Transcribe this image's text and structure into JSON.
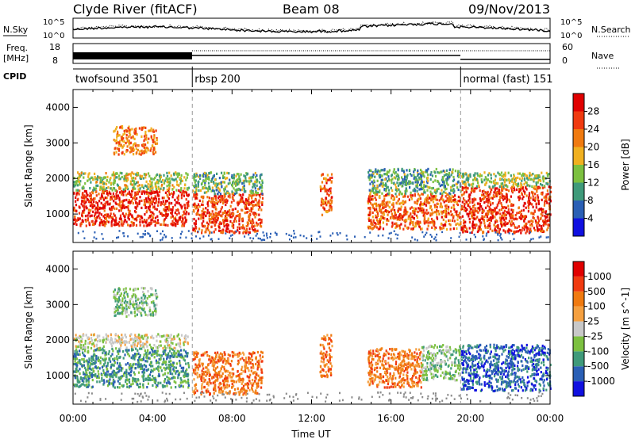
{
  "header": {
    "title": "Clyde River (fitACF)",
    "beam": "Beam 08",
    "date": "09/Nov/2013"
  },
  "status": {
    "nsky_label": "N.Sky",
    "nsearch_label": "N.Search",
    "freq_label_1": "Freq.",
    "freq_label_2": "[MHz]",
    "nave_label": "Nave",
    "cpid_label": "CPID",
    "nsky_ticks": [
      "10^5",
      "10^0"
    ],
    "nsearch_ticks": [
      "10^5",
      "10^0"
    ],
    "freq_ticks": [
      "18",
      "8"
    ],
    "nave_ticks": [
      "60",
      "0"
    ]
  },
  "cpid_segments": [
    {
      "start": 0,
      "end": 6,
      "label": "twofsound 3501"
    },
    {
      "start": 6,
      "end": 19.5,
      "label": "rbsp 200"
    },
    {
      "start": 19.5,
      "end": 24,
      "label": "normal (fast) 151"
    }
  ],
  "axes": {
    "ylabel": "Slant Range [km]",
    "xlabel": "Time UT",
    "xticks": [
      "00:00",
      "04:00",
      "08:00",
      "12:00",
      "16:00",
      "20:00",
      "00:00"
    ],
    "yticks": [
      "1000",
      "2000",
      "3000",
      "4000"
    ]
  },
  "colors": {
    "power": [
      "#1010e0",
      "#2a5fb5",
      "#3f9a7a",
      "#7cc040",
      "#f0b020",
      "#f07a10",
      "#f03a10",
      "#e00000"
    ],
    "velocity": [
      "#e00000",
      "#f03a10",
      "#f07a10",
      "#f5a040",
      "#c8c8c8",
      "#7cc040",
      "#3f9a7a",
      "#2a5fb5",
      "#1010e0"
    ]
  },
  "chart_data": [
    {
      "type": "heatmap",
      "name": "power",
      "ylabel": "Slant Range [km]",
      "xlabel": "Time UT",
      "xlim": [
        0,
        24
      ],
      "ylim": [
        200,
        4500
      ],
      "colorbar_label": "Power [dB]",
      "colorbar_ticks": [
        "4",
        "8",
        "12",
        "16",
        "20",
        "24",
        "28"
      ],
      "colorbar_range": [
        0,
        32
      ],
      "blobs": [
        {
          "t0": 0.0,
          "t1": 5.8,
          "r0": 700,
          "r1": 1700,
          "level": 26
        },
        {
          "t0": 0.0,
          "t1": 5.8,
          "r0": 1700,
          "r1": 2200,
          "level": 13
        },
        {
          "t0": 2.0,
          "t1": 4.2,
          "r0": 2700,
          "r1": 3500,
          "level": 20
        },
        {
          "t0": 6.0,
          "t1": 9.5,
          "r0": 500,
          "r1": 1600,
          "level": 24
        },
        {
          "t0": 6.0,
          "t1": 9.5,
          "r0": 1600,
          "r1": 2200,
          "level": 10
        },
        {
          "t0": 12.4,
          "t1": 13.0,
          "r0": 1000,
          "r1": 2200,
          "level": 22
        },
        {
          "t0": 14.8,
          "t1": 19.5,
          "r0": 600,
          "r1": 1600,
          "level": 22
        },
        {
          "t0": 14.8,
          "t1": 19.5,
          "r0": 1600,
          "r1": 2300,
          "level": 9
        },
        {
          "t0": 19.5,
          "t1": 24.0,
          "r0": 500,
          "r1": 1800,
          "level": 25
        },
        {
          "t0": 19.5,
          "t1": 24.0,
          "r0": 1800,
          "r1": 2200,
          "level": 12
        }
      ]
    },
    {
      "type": "heatmap",
      "name": "velocity",
      "ylabel": "Slant Range [km]",
      "xlabel": "Time UT",
      "xlim": [
        0,
        24
      ],
      "ylim": [
        200,
        4500
      ],
      "colorbar_label": "Velocity [m s^-1]",
      "colorbar_ticks": [
        "1000",
        "500",
        "100",
        "25",
        "-25",
        "-100",
        "-500",
        "-1000"
      ],
      "blobs": [
        {
          "t0": 0.0,
          "t1": 5.8,
          "r0": 700,
          "r1": 1800,
          "level": 6
        },
        {
          "t0": 0.0,
          "t1": 5.8,
          "r0": 1800,
          "r1": 2200,
          "level": 4
        },
        {
          "t0": 2.0,
          "t1": 4.2,
          "r0": 2700,
          "r1": 3500,
          "level": 5
        },
        {
          "t0": 6.0,
          "t1": 9.5,
          "r0": 500,
          "r1": 1700,
          "level": 2
        },
        {
          "t0": 12.4,
          "t1": 13.0,
          "r0": 1000,
          "r1": 2200,
          "level": 2
        },
        {
          "t0": 14.8,
          "t1": 17.5,
          "r0": 700,
          "r1": 1800,
          "level": 2
        },
        {
          "t0": 17.5,
          "t1": 19.5,
          "r0": 900,
          "r1": 1900,
          "level": 5
        },
        {
          "t0": 19.5,
          "t1": 24.0,
          "r0": 600,
          "r1": 1900,
          "level": 7
        }
      ]
    }
  ]
}
